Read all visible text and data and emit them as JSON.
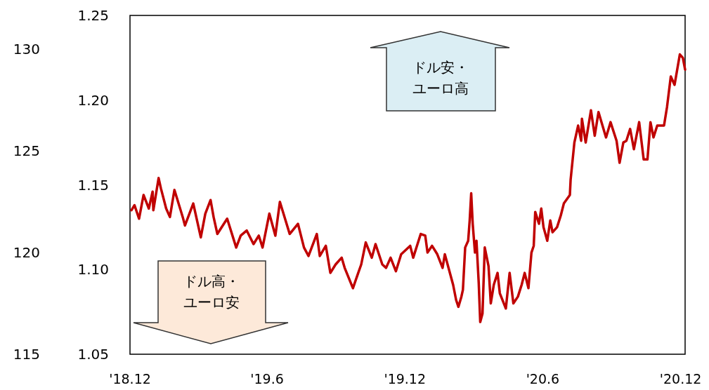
{
  "chart_data": {
    "type": "line",
    "x": [
      "2018-12-03",
      "2018-12-07",
      "2018-12-13",
      "2018-12-19",
      "2018-12-26",
      "2018-12-31",
      "2019-01-01",
      "2019-01-08",
      "2019-01-11",
      "2019-01-18",
      "2019-01-23",
      "2019-01-29",
      "2019-02-09",
      "2019-02-12",
      "2019-02-23",
      "2019-03-05",
      "2019-03-11",
      "2019-03-18",
      "2019-03-22",
      "2019-03-27",
      "2019-04-09",
      "2019-04-21",
      "2019-04-27",
      "2019-05-05",
      "2019-05-14",
      "2019-05-21",
      "2019-05-26",
      "2019-06-04",
      "2019-06-12",
      "2019-06-18",
      "2019-07-01",
      "2019-07-12",
      "2019-07-20",
      "2019-07-26",
      "2019-08-06",
      "2019-08-10",
      "2019-08-18",
      "2019-08-24",
      "2019-08-31",
      "2019-09-08",
      "2019-09-12",
      "2019-09-23",
      "2019-09-30",
      "2019-10-04",
      "2019-10-10",
      "2019-10-18",
      "2019-10-23",
      "2019-11-01",
      "2019-11-06",
      "2019-11-12",
      "2019-11-19",
      "2019-11-26",
      "2019-12-08",
      "2019-12-12",
      "2019-12-22",
      "2019-12-28",
      "2019-12-31",
      "2020-01-06",
      "2020-01-13",
      "2020-01-20",
      "2020-01-23",
      "2020-02-03",
      "2020-02-07",
      "2020-02-10",
      "2020-02-14",
      "2020-02-16",
      "2020-02-19",
      "2020-02-23",
      "2020-02-25",
      "2020-02-27",
      "2020-02-29",
      "2020-03-03",
      "2020-03-05",
      "2020-03-08",
      "2020-03-10",
      "2020-03-13",
      "2020-03-16",
      "2020-03-21",
      "2020-03-24",
      "2020-03-28",
      "2020-04-02",
      "2020-04-05",
      "2020-04-13",
      "2020-04-18",
      "2020-04-23",
      "2020-04-29",
      "2020-05-04",
      "2020-05-08",
      "2020-05-13",
      "2020-05-17",
      "2020-05-20",
      "2020-05-22",
      "2020-05-27",
      "2020-05-30",
      "2020-06-02",
      "2020-06-07",
      "2020-06-11",
      "2020-06-14",
      "2020-06-20",
      "2020-06-25",
      "2020-06-29",
      "2020-07-07",
      "2020-07-08",
      "2020-07-13",
      "2020-07-18",
      "2020-07-22",
      "2020-07-23",
      "2020-07-28",
      "2020-08-04",
      "2020-08-09",
      "2020-08-14",
      "2020-08-24",
      "2020-08-30",
      "2020-09-07",
      "2020-09-11",
      "2020-09-16",
      "2020-09-20",
      "2020-09-25",
      "2020-09-30",
      "2020-10-07",
      "2020-10-13",
      "2020-10-18",
      "2020-10-22",
      "2020-10-26",
      "2020-10-31",
      "2020-11-09",
      "2020-11-13",
      "2020-11-18",
      "2020-11-23",
      "2020-11-30",
      "2020-12-04",
      "2020-12-07"
    ],
    "series": [
      {
        "color": "#c00000",
        "values": [
          1.135,
          1.138,
          1.13,
          1.144,
          1.136,
          1.146,
          1.135,
          1.154,
          1.148,
          1.136,
          1.131,
          1.147,
          1.131,
          1.126,
          1.139,
          1.119,
          1.133,
          1.141,
          1.131,
          1.121,
          1.13,
          1.113,
          1.12,
          1.123,
          1.115,
          1.12,
          1.113,
          1.133,
          1.12,
          1.14,
          1.121,
          1.127,
          1.113,
          1.108,
          1.121,
          1.108,
          1.114,
          1.098,
          1.103,
          1.107,
          1.101,
          1.089,
          1.098,
          1.103,
          1.116,
          1.107,
          1.115,
          1.103,
          1.101,
          1.107,
          1.099,
          1.109,
          1.114,
          1.107,
          1.121,
          1.12,
          1.11,
          1.114,
          1.109,
          1.101,
          1.109,
          1.091,
          1.082,
          1.078,
          1.084,
          1.088,
          1.113,
          1.117,
          1.129,
          1.145,
          1.127,
          1.11,
          1.117,
          1.092,
          1.069,
          1.074,
          1.113,
          1.102,
          1.08,
          1.091,
          1.098,
          1.086,
          1.077,
          1.098,
          1.08,
          1.084,
          1.091,
          1.098,
          1.089,
          1.11,
          1.114,
          1.134,
          1.127,
          1.136,
          1.125,
          1.117,
          1.129,
          1.122,
          1.125,
          1.132,
          1.139,
          1.144,
          1.153,
          1.175,
          1.185,
          1.176,
          1.189,
          1.175,
          1.194,
          1.179,
          1.193,
          1.178,
          1.187,
          1.176,
          1.163,
          1.175,
          1.176,
          1.183,
          1.171,
          1.187,
          1.165,
          1.165,
          1.187,
          1.178,
          1.185,
          1.185,
          1.196,
          1.214,
          1.209,
          1.227,
          1.225,
          1.218
        ]
      }
    ],
    "xlim": [
      "2018-12-01",
      "2020-12-07"
    ],
    "xticks": [
      {
        "value": "2018-12-01",
        "label": "'18.12"
      },
      {
        "value": "2019-06-01",
        "label": "'19.6"
      },
      {
        "value": "2019-12-01",
        "label": "'19.12"
      },
      {
        "value": "2020-06-01",
        "label": "'20.6"
      },
      {
        "value": "2020-12-01",
        "label": "'20.12"
      }
    ],
    "ylim": [
      1.05,
      1.25
    ],
    "yticks": [
      {
        "value": 1.05,
        "label": "1.05"
      },
      {
        "value": 1.1,
        "label": "1.10"
      },
      {
        "value": 1.15,
        "label": "1.15"
      },
      {
        "value": 1.2,
        "label": "1.20"
      },
      {
        "value": 1.25,
        "label": "1.25"
      }
    ],
    "y2lim": [
      115,
      131.65
    ],
    "y2ticks": [
      115,
      120,
      125,
      130
    ],
    "annotations": [
      "ドル安・ユーロ高",
      "ドル高・ユーロ安"
    ]
  }
}
